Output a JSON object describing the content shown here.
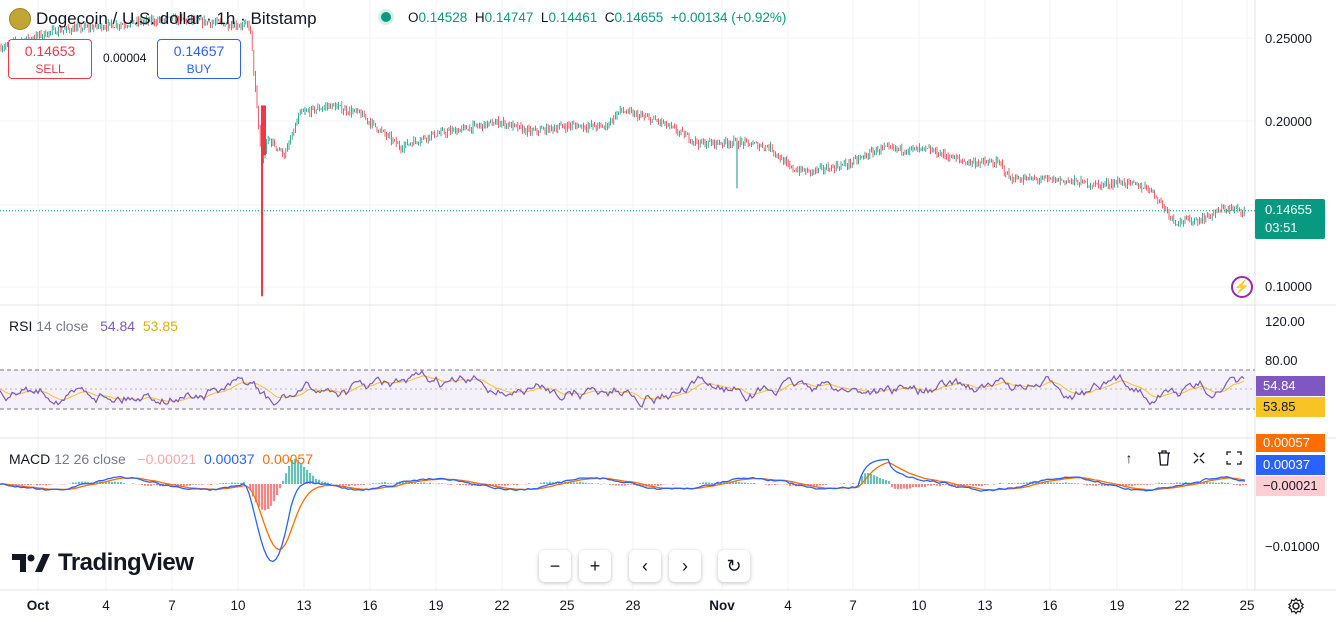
{
  "header": {
    "symbol": "Dogecoin / U.S. dollar · 1h · Bitstamp",
    "status_color": "#089981",
    "ohlc": [
      {
        "key": "O",
        "value": "0.14528"
      },
      {
        "key": "H",
        "value": "0.14747"
      },
      {
        "key": "L",
        "value": "0.14461"
      },
      {
        "key": "C",
        "value": "0.14655"
      }
    ],
    "change": "+0.00134 (+0.92%)"
  },
  "trade": {
    "sell_price": "0.14653",
    "sell_label": "SELL",
    "spread": "0.00004",
    "buy_price": "0.14657",
    "buy_label": "BUY"
  },
  "price_axis": {
    "labels": [
      "0.25000",
      "0.20000",
      "0.10000"
    ],
    "last_price": "0.14655",
    "countdown": "03:51",
    "last_price_color": "#089981"
  },
  "rsi": {
    "name": "RSI",
    "params": "14 close",
    "value1": "54.84",
    "value2": "53.85",
    "axis_labels": [
      "120.00",
      "80.00"
    ],
    "tag1": "54.84",
    "tag2": "53.85",
    "color_rsi": "#7e57c2",
    "color_ma": "#f7c325"
  },
  "macd": {
    "name": "MACD",
    "params": "12 26 close",
    "hist_value": "−0.00021",
    "macd_value": "0.00037",
    "signal_value": "0.00057",
    "axis_labels": [
      "−0.01000"
    ],
    "tag_signal": "0.00057",
    "tag_macd": "0.00037",
    "tag_hist": "−0.00021",
    "color_macd": "#2962ff",
    "color_signal": "#ff6d00"
  },
  "time_axis": {
    "labels": [
      {
        "text": "Oct",
        "bold": true
      },
      {
        "text": "4"
      },
      {
        "text": "7"
      },
      {
        "text": "10"
      },
      {
        "text": "13"
      },
      {
        "text": "16"
      },
      {
        "text": "19"
      },
      {
        "text": "22"
      },
      {
        "text": "25"
      },
      {
        "text": "28"
      },
      {
        "text": "Nov",
        "bold": true
      },
      {
        "text": "4"
      },
      {
        "text": "7"
      },
      {
        "text": "10"
      },
      {
        "text": "13"
      },
      {
        "text": "16"
      },
      {
        "text": "19"
      },
      {
        "text": "22"
      },
      {
        "text": "25"
      }
    ]
  },
  "brand": {
    "name": "TradingView"
  },
  "nav": {
    "zoom_out": "−",
    "zoom_in": "+",
    "scroll_left": "‹",
    "scroll_right": "›",
    "reset": "↻"
  },
  "pane_controls": {
    "move_up": "↑",
    "delete": "🗑",
    "collapse": "⤫",
    "maximize": "⛶"
  },
  "chart_data": {
    "type": "candlestick",
    "title": "Dogecoin / U.S. dollar · 1h · Bitstamp",
    "y_range": [
      0.095,
      0.27
    ],
    "x_labels": [
      "Oct",
      "4",
      "7",
      "10",
      "13",
      "16",
      "19",
      "22",
      "25",
      "28",
      "Nov",
      "4",
      "7",
      "10",
      "13",
      "16",
      "19",
      "22",
      "25"
    ],
    "price_path": [
      {
        "x": "Oct 1",
        "y": 0.245
      },
      {
        "x": "Oct 3",
        "y": 0.255
      },
      {
        "x": "Oct 7",
        "y": 0.262
      },
      {
        "x": "Oct 10",
        "y": 0.26
      },
      {
        "x": "Oct 11",
        "y": 0.195
      },
      {
        "x": "Oct 11 low",
        "y": 0.095
      },
      {
        "x": "Oct 12",
        "y": 0.185
      },
      {
        "x": "Oct 13",
        "y": 0.205
      },
      {
        "x": "Oct 14",
        "y": 0.212
      },
      {
        "x": "Oct 17",
        "y": 0.185
      },
      {
        "x": "Oct 22",
        "y": 0.2
      },
      {
        "x": "Oct 27",
        "y": 0.198
      },
      {
        "x": "Oct 28",
        "y": 0.207
      },
      {
        "x": "Nov 1",
        "y": 0.187
      },
      {
        "x": "Nov 4",
        "y": 0.172
      },
      {
        "x": "Nov 7",
        "y": 0.175
      },
      {
        "x": "Nov 9",
        "y": 0.184
      },
      {
        "x": "Nov 11",
        "y": 0.183
      },
      {
        "x": "Nov 14",
        "y": 0.166
      },
      {
        "x": "Nov 17",
        "y": 0.162
      },
      {
        "x": "Nov 19",
        "y": 0.164
      },
      {
        "x": "Nov 21",
        "y": 0.14
      },
      {
        "x": "Nov 24",
        "y": 0.148
      },
      {
        "x": "Nov 25",
        "y": 0.14655
      }
    ]
  }
}
